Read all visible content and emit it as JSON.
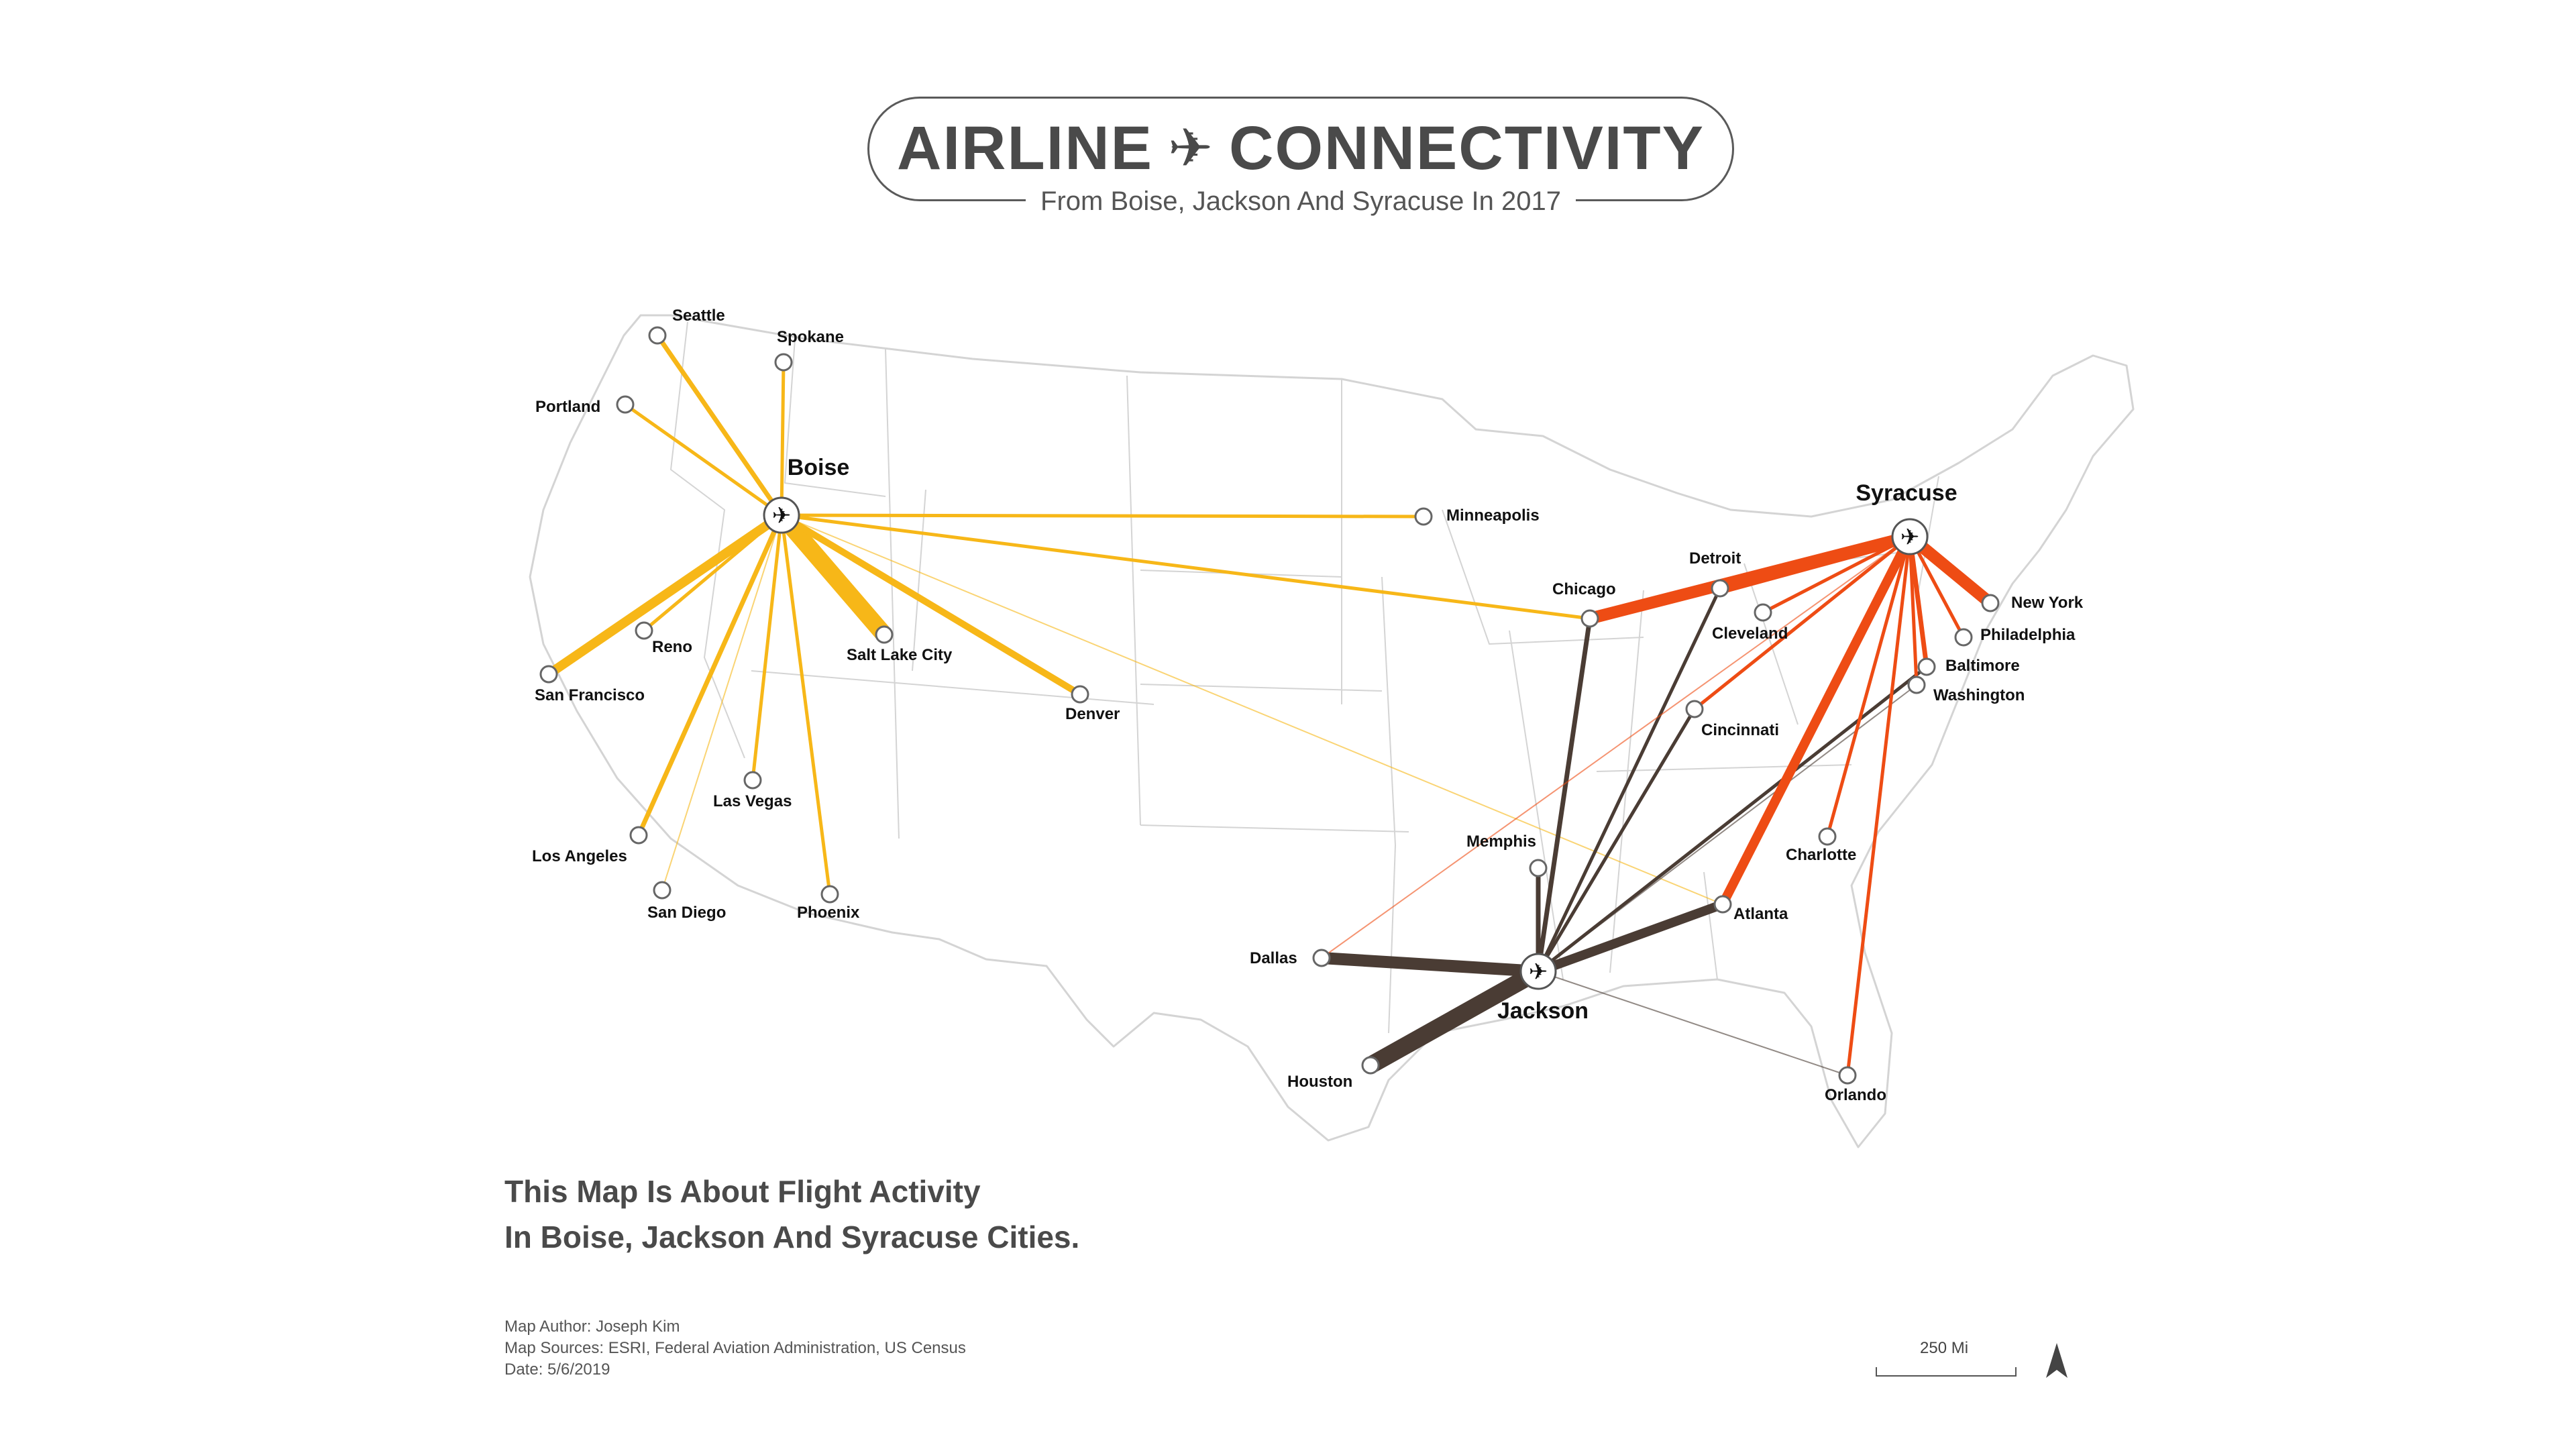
{
  "title": {
    "left": "AIRLINE",
    "right": "CONNECTIVITY",
    "icon": "airplane-icon"
  },
  "subtitle": "From Boise, Jackson And Syracuse In 2017",
  "description": [
    "This Map Is About Flight Activity",
    "In Boise, Jackson And Syracuse Cities."
  ],
  "credits": [
    "Map Author: Joseph Kim",
    "Map Sources: ESRI, Federal Aviation Administration, US Census",
    "Date: 5/6/2019"
  ],
  "scale_label": "250 Mi",
  "colors": {
    "boise": "#f7b718",
    "jackson": "#4a3c34",
    "syracuse": "#ee4c14",
    "basemap": "#d4d4d4"
  },
  "hubs": [
    {
      "id": "boise",
      "name": "Boise"
    },
    {
      "id": "jackson",
      "name": "Jackson"
    },
    {
      "id": "syracuse",
      "name": "Syracuse"
    }
  ],
  "cities": [
    {
      "id": "seattle",
      "name": "Seattle"
    },
    {
      "id": "spokane",
      "name": "Spokane"
    },
    {
      "id": "portland",
      "name": "Portland"
    },
    {
      "id": "reno",
      "name": "Reno"
    },
    {
      "id": "sanfrancisco",
      "name": "San Francisco"
    },
    {
      "id": "saltlakecity",
      "name": "Salt Lake City"
    },
    {
      "id": "denver",
      "name": "Denver"
    },
    {
      "id": "lasvegas",
      "name": "Las Vegas"
    },
    {
      "id": "losangeles",
      "name": "Los Angeles"
    },
    {
      "id": "sandiego",
      "name": "San Diego"
    },
    {
      "id": "phoenix",
      "name": "Phoenix"
    },
    {
      "id": "minneapolis",
      "name": "Minneapolis"
    },
    {
      "id": "chicago",
      "name": "Chicago"
    },
    {
      "id": "detroit",
      "name": "Detroit"
    },
    {
      "id": "cleveland",
      "name": "Cleveland"
    },
    {
      "id": "cincinnati",
      "name": "Cincinnati"
    },
    {
      "id": "newyork",
      "name": "New York"
    },
    {
      "id": "philadelphia",
      "name": "Philadelphia"
    },
    {
      "id": "baltimore",
      "name": "Baltimore"
    },
    {
      "id": "washington",
      "name": "Washington"
    },
    {
      "id": "charlotte",
      "name": "Charlotte"
    },
    {
      "id": "memphis",
      "name": "Memphis"
    },
    {
      "id": "atlanta",
      "name": "Atlanta"
    },
    {
      "id": "dallas",
      "name": "Dallas"
    },
    {
      "id": "houston",
      "name": "Houston"
    },
    {
      "id": "orlando",
      "name": "Orlando"
    }
  ],
  "routes": [
    {
      "hub": "boise",
      "to": "seattle",
      "level": 3
    },
    {
      "hub": "boise",
      "to": "spokane",
      "level": 2
    },
    {
      "hub": "boise",
      "to": "portland",
      "level": 2
    },
    {
      "hub": "boise",
      "to": "reno",
      "level": 2
    },
    {
      "hub": "boise",
      "to": "sanfrancisco",
      "level": 5
    },
    {
      "hub": "boise",
      "to": "saltlakecity",
      "level": 7
    },
    {
      "hub": "boise",
      "to": "denver",
      "level": 4
    },
    {
      "hub": "boise",
      "to": "lasvegas",
      "level": 2
    },
    {
      "hub": "boise",
      "to": "losangeles",
      "level": 3
    },
    {
      "hub": "boise",
      "to": "sandiego",
      "level": 1
    },
    {
      "hub": "boise",
      "to": "phoenix",
      "level": 2
    },
    {
      "hub": "boise",
      "to": "minneapolis",
      "level": 2
    },
    {
      "hub": "boise",
      "to": "chicago",
      "level": 2
    },
    {
      "hub": "boise",
      "to": "atlanta",
      "level": 1
    },
    {
      "hub": "jackson",
      "to": "chicago",
      "level": 3
    },
    {
      "hub": "jackson",
      "to": "detroit",
      "level": 2
    },
    {
      "hub": "jackson",
      "to": "cincinnati",
      "level": 2
    },
    {
      "hub": "jackson",
      "to": "memphis",
      "level": 3
    },
    {
      "hub": "jackson",
      "to": "atlanta",
      "level": 5
    },
    {
      "hub": "jackson",
      "to": "dallas",
      "level": 6
    },
    {
      "hub": "jackson",
      "to": "houston",
      "level": 7
    },
    {
      "hub": "jackson",
      "to": "baltimore",
      "level": 2
    },
    {
      "hub": "jackson",
      "to": "washington",
      "level": 1
    },
    {
      "hub": "jackson",
      "to": "orlando",
      "level": 1
    },
    {
      "hub": "syracuse",
      "to": "chicago",
      "level": 6
    },
    {
      "hub": "syracuse",
      "to": "detroit",
      "level": 6
    },
    {
      "hub": "syracuse",
      "to": "cleveland",
      "level": 2
    },
    {
      "hub": "syracuse",
      "to": "cincinnati",
      "level": 2
    },
    {
      "hub": "syracuse",
      "to": "newyork",
      "level": 6
    },
    {
      "hub": "syracuse",
      "to": "philadelphia",
      "level": 2
    },
    {
      "hub": "syracuse",
      "to": "baltimore",
      "level": 3
    },
    {
      "hub": "syracuse",
      "to": "washington",
      "level": 2
    },
    {
      "hub": "syracuse",
      "to": "charlotte",
      "level": 2
    },
    {
      "hub": "syracuse",
      "to": "atlanta",
      "level": 5
    },
    {
      "hub": "syracuse",
      "to": "orlando",
      "level": 2
    },
    {
      "hub": "syracuse",
      "to": "dallas",
      "level": 1
    }
  ]
}
